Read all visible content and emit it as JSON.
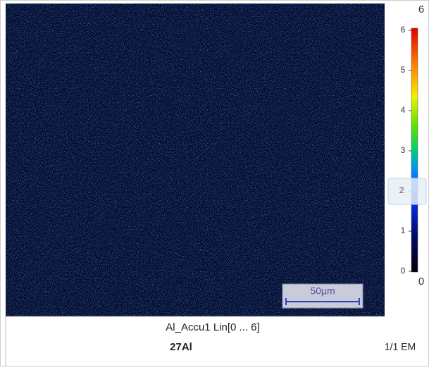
{
  "map": {
    "scale_bar": "50µm",
    "caption": "Al_Accu1 Lin[0 ... 6]",
    "element": "27Al",
    "page": "1/1 EM"
  },
  "colorbar": {
    "max_label": "6",
    "min_label": "0",
    "handle": "2",
    "ticks": [
      0,
      1,
      2,
      3,
      4,
      5,
      6
    ]
  }
}
